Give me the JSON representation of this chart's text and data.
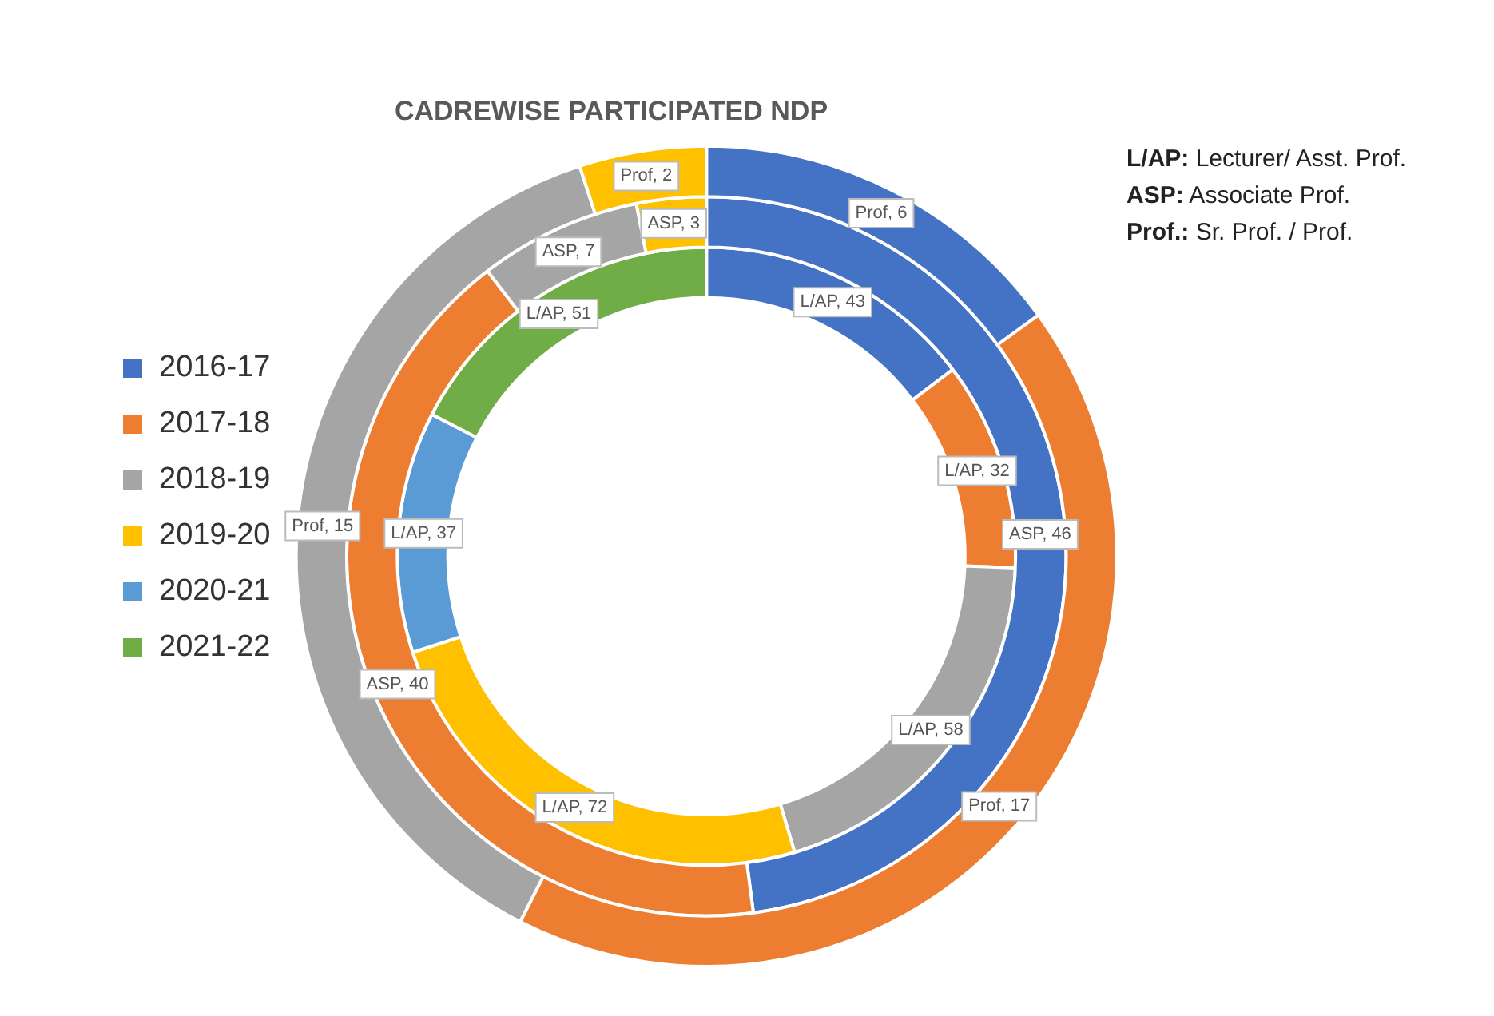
{
  "chart_data": {
    "type": "donut",
    "title": "CADREWISE PARTICIPATED NDP",
    "categories": [
      "2016-17",
      "2017-18",
      "2018-19",
      "2019-20",
      "2020-21",
      "2021-22"
    ],
    "colors": [
      "#4472c4",
      "#ed7d31",
      "#a5a5a5",
      "#ffc000",
      "#5b9bd5",
      "#70ad47"
    ],
    "series": [
      {
        "values": [
          43,
          32,
          58,
          72,
          37,
          51
        ],
        "value_labels": [
          "L/AP, 43",
          "L/AP, 32",
          "L/AP, 58",
          "L/AP, 72",
          "L/AP, 37",
          "L/AP, 51"
        ]
      },
      {
        "values": [
          46,
          40,
          7,
          3,
          null,
          null
        ],
        "value_labels": [
          "ASP, 46",
          "ASP, 40",
          "ASP, 7",
          "ASP, 3",
          null,
          null
        ]
      },
      {
        "values": [
          6,
          17,
          15,
          2,
          null,
          null
        ],
        "value_labels": [
          "Prof, 6",
          "Prof, 17",
          "Prof, 15",
          "Prof, 2",
          null,
          null
        ]
      }
    ],
    "legend": "left",
    "annotations": [
      "L/AP: Lecturer/ Asst. Prof.",
      "ASP: Associate Prof.",
      "Prof.: Sr. Prof. / Prof."
    ]
  }
}
